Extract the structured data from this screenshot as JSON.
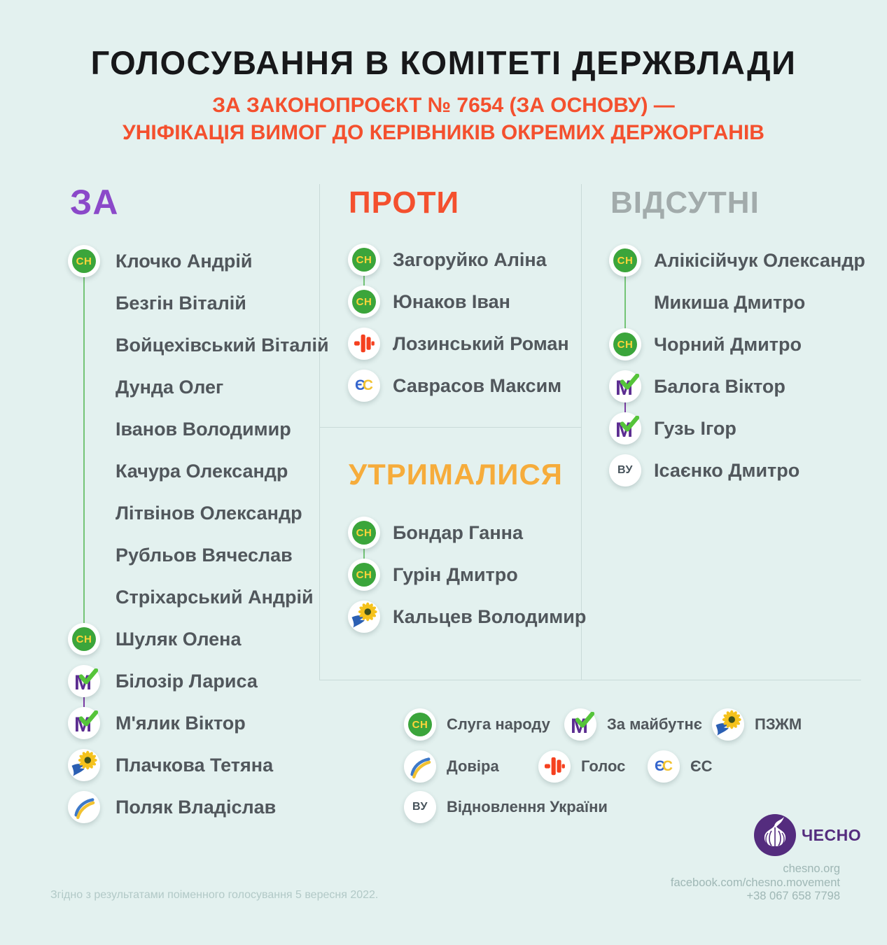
{
  "header": {
    "title": "ГОЛОСУВАННЯ В КОМІТЕТІ ДЕРЖВЛАДИ",
    "subtitle_line1": "ЗА ЗАКОНОПРОЄКТ № 7654 (ЗА ОСНОВУ) —",
    "subtitle_line2": "УНІФІКАЦІЯ ВИМОГ ДО КЕРІВНИКІВ ОКРЕМИХ ДЕРЖОРГАНІВ"
  },
  "columns": {
    "za": {
      "label": "ЗА",
      "items": [
        {
          "name": "Клочко Андрій",
          "party": "sn"
        },
        {
          "name": "Безгін Віталій",
          "party": "none"
        },
        {
          "name": "Войцехівський Віталій",
          "party": "none"
        },
        {
          "name": "Дунда Олег",
          "party": "none"
        },
        {
          "name": "Іванов Володимир",
          "party": "none"
        },
        {
          "name": "Качура Олександр",
          "party": "none"
        },
        {
          "name": "Літвінов Олександр",
          "party": "none"
        },
        {
          "name": "Рубльов Вячеслав",
          "party": "none"
        },
        {
          "name": "Стріхарський Андрій",
          "party": "none"
        },
        {
          "name": "Шуляк Олена",
          "party": "sn"
        },
        {
          "name": "Білозір Лариса",
          "party": "zm"
        },
        {
          "name": "М'ялик Віктор",
          "party": "zm"
        },
        {
          "name": "Плачкова Тетяна",
          "party": "pzhm"
        },
        {
          "name": "Поляк Владіслав",
          "party": "dovira"
        }
      ],
      "connectors": [
        {
          "from": 0,
          "to": 9,
          "color": "green"
        },
        {
          "from": 10,
          "to": 11,
          "color": "purple"
        }
      ]
    },
    "proty": {
      "label": "ПРОТИ",
      "items": [
        {
          "name": "Загоруйко Аліна",
          "party": "sn"
        },
        {
          "name": "Юнаков Іван",
          "party": "sn"
        },
        {
          "name": "Лозинський Роман",
          "party": "holos"
        },
        {
          "name": "Саврасов Максим",
          "party": "es"
        }
      ],
      "connectors": [
        {
          "from": 0,
          "to": 1,
          "color": "green"
        }
      ]
    },
    "utrymalysia": {
      "label": "УТРИМАЛИСЯ",
      "items": [
        {
          "name": "Бондар Ганна",
          "party": "sn"
        },
        {
          "name": "Гурін Дмитро",
          "party": "sn"
        },
        {
          "name": "Кальцев Володимир",
          "party": "pzhm"
        }
      ],
      "connectors": [
        {
          "from": 0,
          "to": 1,
          "color": "green"
        }
      ]
    },
    "vidsutni": {
      "label": "ВІДСУТНІ",
      "items": [
        {
          "name": "Алікісійчук Олександр",
          "party": "sn"
        },
        {
          "name": "Микиша Дмитро",
          "party": "none"
        },
        {
          "name": "Чорний Дмитро",
          "party": "sn"
        },
        {
          "name": "Балога Віктор",
          "party": "zm"
        },
        {
          "name": "Гузь Ігор",
          "party": "zm"
        },
        {
          "name": "Ісаєнко Дмитро",
          "party": "vu"
        }
      ],
      "connectors": [
        {
          "from": 0,
          "to": 2,
          "color": "green"
        },
        {
          "from": 3,
          "to": 4,
          "color": "purple"
        }
      ]
    }
  },
  "legend": {
    "rows": [
      [
        {
          "party": "sn",
          "label": "Слуга народу"
        },
        {
          "party": "zm",
          "label": "За майбутнє"
        },
        {
          "party": "pzhm",
          "label": "ПЗЖМ"
        }
      ],
      [
        {
          "party": "dovira",
          "label": "Довіра"
        },
        {
          "party": "holos",
          "label": "Голос"
        },
        {
          "party": "es",
          "label": "ЄС"
        }
      ],
      [
        {
          "party": "vu",
          "label": "Відновлення України"
        }
      ]
    ]
  },
  "party_glyphs": {
    "sn": "СН",
    "zm": "М",
    "vu": "ВУ",
    "es_e": "Є",
    "es_c": "С"
  },
  "brand": {
    "name": "ЧЕСНО",
    "website": "chesno.org",
    "facebook": "facebook.com/chesno.movement",
    "phone": "+38 067 658 7798"
  },
  "footer": {
    "note": "Згідно з результатами поіменного голосування 5 вересня 2022."
  },
  "colors": {
    "bg": "#e3f1ef",
    "title": "#17181a",
    "accent_red": "#f4502e",
    "accent_purple": "#8b49c9",
    "accent_yellow": "#f6ac3b",
    "accent_gray": "#a2abab",
    "name": "#51575c",
    "divider": "#c9dad8",
    "line_green": "#74c476",
    "line_purple": "#7c3aa4",
    "sn_green": "#3ba53b",
    "sn_yellow": "#ffd43a",
    "zm_purple": "#5c2d91",
    "check_green": "#55c43a",
    "es_blue": "#3566ce",
    "es_yellow": "#f1c232",
    "holos_red": "#f5401f",
    "vu_text": "#46525a",
    "dovira_blue": "#3e79c8",
    "dovira_yellow": "#f2c230",
    "pzhm_yellow": "#f5c21c",
    "pzhm_center": "#3f511c",
    "pzhm_blue": "#2b5fb3",
    "brand_purple": "#542c7e",
    "footer_note": "#b2c9c7",
    "contacts": "#9fb7b5"
  }
}
